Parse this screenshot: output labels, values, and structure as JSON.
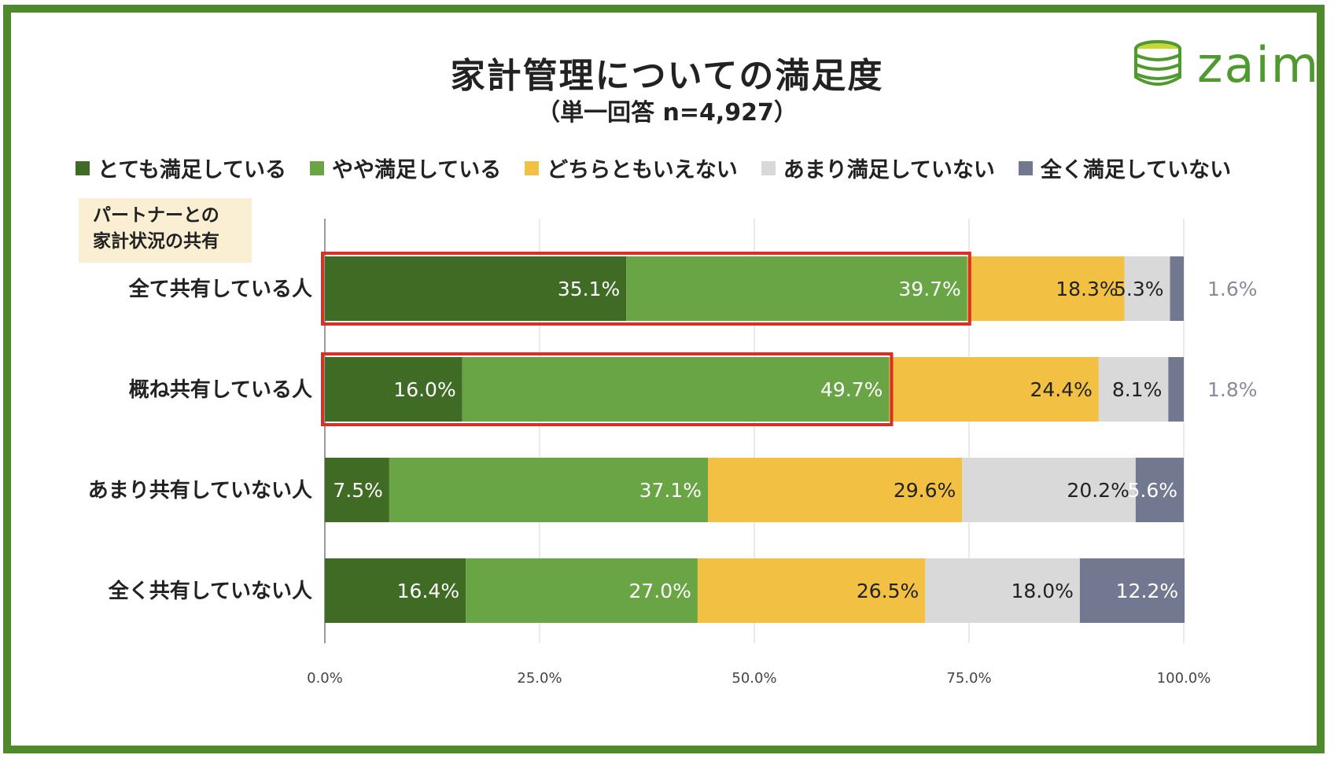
{
  "chart_data": {
    "type": "bar",
    "orientation": "horizontal",
    "stacked": true,
    "title": "家計管理についての満足度",
    "subtitle": "（単一回答 n=4,927）",
    "group_label_lines": [
      "パートナーとの",
      "家計状況の共有"
    ],
    "categories": [
      "全て共有している人",
      "概ね共有している人",
      "あまり共有していない人",
      "全く共有していない人"
    ],
    "series": [
      {
        "name": "とても満足している",
        "color": "#3f6b25",
        "values": [
          35.1,
          16.0,
          7.5,
          16.4
        ],
        "labels": [
          "35.1%",
          "16.0%",
          "7.5%",
          "16.4%"
        ]
      },
      {
        "name": "やや満足している",
        "color": "#6aa545",
        "values": [
          39.7,
          49.7,
          37.1,
          27.0
        ],
        "labels": [
          "39.7%",
          "49.7%",
          "37.1%",
          "27.0%"
        ]
      },
      {
        "name": "どちらともいえない",
        "color": "#f2c042",
        "values": [
          18.3,
          24.4,
          29.6,
          26.5
        ],
        "labels": [
          "18.3%",
          "24.4%",
          "29.6%",
          "26.5%"
        ]
      },
      {
        "name": "あまり満足していない",
        "color": "#d9d9d9",
        "values": [
          5.3,
          8.1,
          20.2,
          18.0
        ],
        "labels": [
          "5.3%",
          "8.1%",
          "20.2%",
          "18.0%"
        ]
      },
      {
        "name": "全く満足していない",
        "color": "#727890",
        "values": [
          1.6,
          1.8,
          5.6,
          12.2
        ],
        "labels": [
          "1.6%",
          "1.8%",
          "5.6%",
          "12.2%"
        ]
      }
    ],
    "x_ticks": [
      "0.0%",
      "25.0%",
      "50.0%",
      "75.0%",
      "100.0%"
    ],
    "xlim": [
      0,
      100
    ],
    "grid": true,
    "legend_position": "top",
    "highlighted_categories": [
      "全て共有している人",
      "概ね共有している人"
    ],
    "highlight_color": "#d93025"
  },
  "brand": {
    "logo_text": "zaim",
    "logo_color": "#4e9a2e",
    "frame_color": "#4e8a2b"
  }
}
